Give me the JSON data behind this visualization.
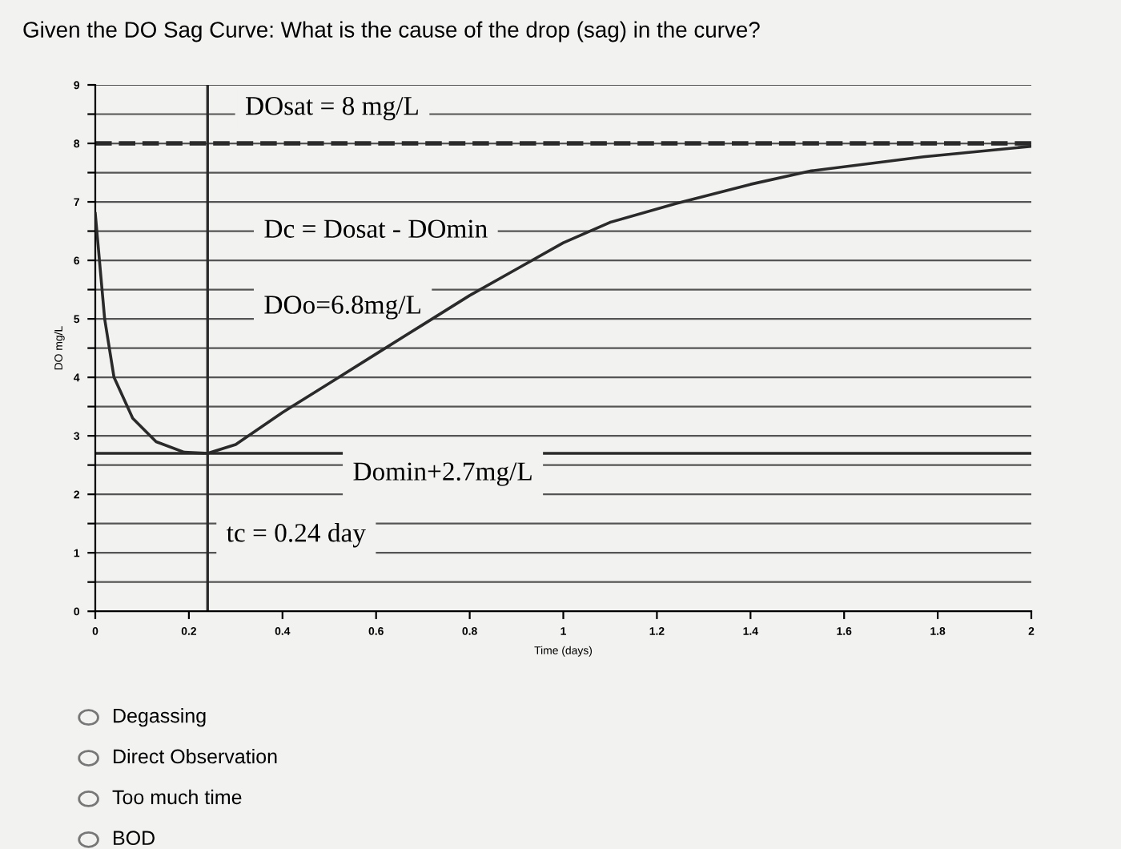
{
  "chart_data": {
    "type": "line",
    "title": "Given the DO Sag Curve: What is the cause of the drop (sag) in the curve?",
    "xlabel": "Time (days)",
    "ylabel": "DO mg/L",
    "x": [
      0,
      0.02,
      0.04,
      0.08,
      0.13,
      0.19,
      0.24,
      0.3,
      0.4,
      0.5,
      0.6,
      0.7,
      0.8,
      0.9,
      1.0,
      1.1,
      1.24,
      1.4,
      1.53,
      1.77,
      2.0
    ],
    "series": [
      {
        "color": "#2a2a2a",
        "values": [
          6.8,
          5.0,
          4.0,
          3.3,
          2.9,
          2.72,
          2.7,
          2.85,
          3.4,
          3.9,
          4.4,
          4.9,
          5.4,
          5.85,
          6.3,
          6.65,
          6.97,
          7.3,
          7.53,
          7.77,
          7.95
        ]
      }
    ],
    "xlim": [
      0,
      2
    ],
    "ylim": [
      0,
      9
    ],
    "xticks": [
      0,
      0.2,
      0.4,
      0.6,
      0.8,
      1,
      1.2,
      1.4,
      1.6,
      1.8,
      2
    ],
    "yticks": [
      0,
      {
        "value": 0.5,
        "label": null
      },
      1,
      {
        "value": 1.5,
        "label": null
      },
      2,
      {
        "value": 2.5,
        "label": null
      },
      3,
      {
        "value": 3.5,
        "label": null
      },
      4,
      {
        "value": 4.5,
        "label": null
      },
      5,
      {
        "value": 5.5,
        "label": null
      },
      6,
      {
        "value": 6.5,
        "label": null
      },
      7,
      {
        "value": 7.5,
        "label": null
      },
      8,
      {
        "value": 8.5,
        "label": null
      },
      9
    ],
    "grid": "y",
    "marker": "none",
    "line_style": "solid",
    "ref_lines": [
      {
        "axis": "y",
        "value": 8,
        "label": "DOsat = 8 mg/L",
        "line_style": "dashed",
        "color": "#2a2a2a"
      },
      {
        "axis": "y",
        "value": 2.7,
        "label": "Domin+2.7mg/L",
        "line_style": "solid",
        "color": "#2a2a2a"
      },
      {
        "axis": "x",
        "value": 0.24,
        "label": "tc = 0.24 day",
        "line_style": "solid",
        "color": "#2a2a2a"
      }
    ],
    "annotations": [
      "Dc = Dosat - DOmin",
      "DOo=6.8mg/L",
      "Degassing",
      "Direct Observation",
      "Too much time",
      "BOD"
    ]
  }
}
